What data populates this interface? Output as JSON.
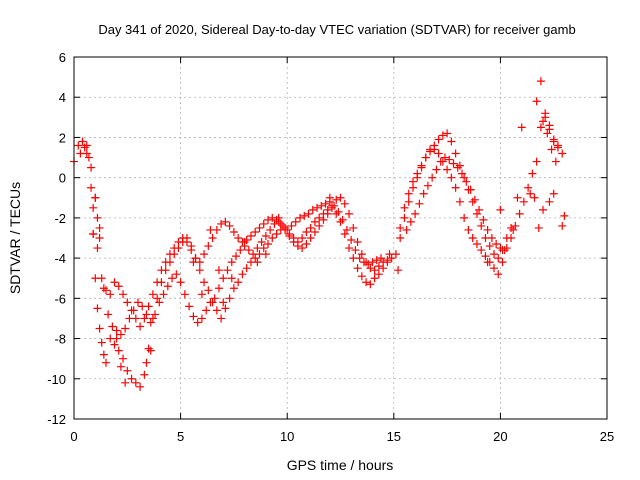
{
  "chart_data": {
    "type": "scatter",
    "title": "Day 341 of 2020, Sidereal Day-to-day VTEC variation (SDTVAR) for receiver gamb",
    "xlabel": "GPS time / hours",
    "ylabel": "SDTVAR / TECUs",
    "xlim": [
      0,
      25
    ],
    "ylim": [
      -12,
      6
    ],
    "xticks": [
      "0",
      "5",
      "10",
      "15",
      "20",
      "25"
    ],
    "yticks": [
      "-12",
      "-10",
      "-8",
      "-6",
      "-4",
      "-2",
      "0",
      "2",
      "4",
      "6"
    ],
    "grid": true,
    "marker": "plus",
    "color": "#ff0000",
    "series": [
      {
        "x": [
          0.0,
          0.2,
          0.4,
          0.6,
          0.8,
          0.9,
          1.0,
          1.1,
          1.2,
          1.3,
          1.4,
          1.5,
          1.7,
          1.9,
          2.1,
          2.3,
          2.5,
          2.7,
          2.9,
          3.1,
          3.3,
          3.5,
          3.7,
          3.9,
          4.1,
          4.3,
          4.5,
          4.7,
          4.9,
          5.1,
          5.3,
          5.5,
          5.7,
          5.9,
          6.1,
          6.3,
          6.5,
          6.7,
          6.9,
          7.1,
          7.3,
          7.5,
          7.7,
          7.9,
          8.1,
          8.3,
          8.5,
          8.7,
          8.9,
          9.1,
          9.3,
          9.5,
          9.7,
          9.9,
          10.1,
          10.3,
          10.5,
          10.7,
          10.9,
          11.1,
          11.3,
          11.5,
          11.7,
          11.9,
          12.1,
          12.3,
          12.5,
          12.7,
          12.9,
          13.1,
          13.3,
          13.5,
          13.7,
          13.9,
          14.1,
          14.3,
          14.5,
          14.7,
          14.9,
          15.1,
          15.3,
          15.5,
          15.7,
          15.9,
          16.1,
          16.3,
          16.5,
          16.7,
          16.9,
          17.1,
          17.3,
          17.5,
          17.7,
          17.9,
          18.1,
          18.3,
          18.5,
          18.7,
          18.9,
          19.1,
          19.3,
          19.5,
          19.7,
          19.9,
          20.1,
          20.3,
          20.5,
          20.7,
          20.9,
          21.1,
          21.3,
          21.5,
          21.7,
          21.9,
          22.1,
          22.3,
          22.5,
          22.7,
          22.9
        ],
        "y": [
          0.8,
          1.6,
          1.8,
          1.2,
          -0.5,
          -2.8,
          -5.0,
          -6.5,
          -7.5,
          -8.2,
          -8.8,
          -9.2,
          -8.0,
          -8.3,
          -8.6,
          -9.0,
          -9.6,
          -10.0,
          -10.2,
          -10.4,
          -9.8,
          -8.5,
          -7.0,
          -6.0,
          -5.2,
          -4.6,
          -4.2,
          -3.8,
          -3.5,
          -3.2,
          -3.0,
          -3.4,
          -4.0,
          -4.6,
          -5.2,
          -5.6,
          -6.2,
          -6.6,
          -7.0,
          -6.5,
          -6.0,
          -5.5,
          -5.2,
          -4.8,
          -4.5,
          -4.2,
          -4.0,
          -3.8,
          -3.5,
          -3.3,
          -3.0,
          -2.8,
          -2.6,
          -2.5,
          -2.8,
          -3.0,
          -3.2,
          -3.0,
          -2.7,
          -2.5,
          -2.2,
          -2.0,
          -1.8,
          -1.6,
          -1.5,
          -1.8,
          -2.2,
          -2.8,
          -3.5,
          -4.0,
          -4.5,
          -4.9,
          -5.2,
          -5.3,
          -5.0,
          -4.8,
          -4.5,
          -4.2,
          -4.0,
          -3.8,
          -2.5,
          -1.5,
          -0.8,
          -0.2,
          0.2,
          0.6,
          1.0,
          1.3,
          1.4,
          1.2,
          0.8,
          0.4,
          0.0,
          -0.5,
          -1.2,
          -2.0,
          -2.6,
          -3.0,
          -3.3,
          -3.6,
          -3.9,
          -4.2,
          -4.5,
          -4.8,
          -4.2,
          -3.5,
          -3.0,
          -2.4,
          -1.8,
          -1.2,
          -0.5,
          0.2,
          0.8,
          2.5,
          3.0,
          2.6,
          1.8,
          1.5,
          1.2
        ]
      },
      {
        "x": [
          0.3,
          0.5,
          0.7,
          0.9,
          1.1,
          1.3,
          1.5,
          1.7,
          1.9,
          2.1,
          2.3,
          2.5,
          2.7,
          2.9,
          3.1,
          3.3,
          3.5,
          3.7,
          3.9,
          4.1,
          4.3,
          4.5,
          4.7,
          4.9,
          5.1,
          5.3,
          5.5,
          5.7,
          5.9,
          6.1,
          6.3,
          6.5,
          6.7,
          6.9,
          7.1,
          7.3,
          7.5,
          7.7,
          7.9,
          8.1,
          8.3,
          8.5,
          8.7,
          8.9,
          9.1,
          9.3,
          9.5,
          9.7,
          9.9,
          10.1,
          10.3,
          10.5,
          10.7,
          10.9,
          11.1,
          11.3,
          11.5,
          11.7,
          11.9,
          12.1,
          12.3,
          12.5,
          12.7,
          12.9,
          13.1,
          13.3,
          13.5,
          13.7,
          13.9,
          14.1,
          14.3,
          14.5,
          14.7,
          15.3,
          15.5,
          15.7,
          15.9,
          16.1,
          16.3,
          16.5,
          16.7,
          16.9,
          17.1,
          17.3,
          17.5,
          17.7,
          17.9,
          18.1,
          18.3,
          18.5,
          18.7,
          18.9,
          19.1,
          19.3,
          19.5,
          19.7,
          19.9,
          20.1,
          20.3,
          20.5,
          21.7,
          21.9,
          22.1,
          22.3,
          22.5,
          22.7
        ],
        "y": [
          1.2,
          1.5,
          1.0,
          -1.5,
          -3.5,
          -5.0,
          -5.6,
          -5.8,
          -5.2,
          -5.4,
          -5.8,
          -6.2,
          -6.6,
          -7.0,
          -7.4,
          -7.0,
          -6.4,
          -5.8,
          -5.2,
          -4.6,
          -4.2,
          -3.8,
          -3.5,
          -3.2,
          -3.0,
          -3.2,
          -3.6,
          -4.0,
          -4.2,
          -3.8,
          -3.4,
          -3.0,
          -2.6,
          -2.3,
          -2.2,
          -2.4,
          -2.7,
          -3.0,
          -3.2,
          -3.1,
          -2.9,
          -2.7,
          -2.5,
          -2.3,
          -2.1,
          -2.0,
          -2.1,
          -2.3,
          -2.6,
          -2.9,
          -3.2,
          -3.4,
          -3.5,
          -3.3,
          -3.0,
          -2.7,
          -2.4,
          -2.1,
          -1.8,
          -1.4,
          -1.1,
          -1.0,
          -1.3,
          -1.8,
          -2.5,
          -3.2,
          -3.8,
          -4.2,
          -4.5,
          -4.6,
          -4.4,
          -4.2,
          -4.1,
          -3.0,
          -2.0,
          -1.2,
          -0.5,
          0.0,
          0.5,
          1.0,
          1.4,
          1.6,
          1.9,
          2.1,
          2.2,
          1.8,
          1.2,
          0.6,
          0.0,
          -0.6,
          -1.2,
          -1.8,
          -2.4,
          -3.0,
          -3.4,
          -3.8,
          -4.0,
          -3.6,
          -3.0,
          -2.5,
          3.8,
          4.8,
          3.2,
          2.4,
          1.9,
          1.6
        ]
      },
      {
        "x": [
          0.6,
          0.8,
          1.0,
          1.2,
          1.4,
          1.6,
          1.8,
          2.0,
          2.2,
          2.4,
          2.6,
          2.8,
          3.0,
          3.2,
          3.4,
          3.6,
          3.8,
          4.0,
          4.2,
          4.4,
          4.6,
          4.8,
          5.0,
          5.2,
          5.4,
          5.6,
          5.8,
          6.0,
          6.2,
          6.4,
          6.6,
          6.8,
          7.0,
          7.2,
          7.4,
          7.6,
          7.8,
          8.0,
          8.2,
          8.4,
          8.6,
          8.8,
          9.0,
          9.2,
          9.4,
          9.6,
          9.8,
          10.0,
          10.2,
          10.4,
          10.6,
          10.8,
          11.0,
          11.2,
          11.4,
          11.6,
          11.8,
          12.0,
          12.2,
          12.4,
          12.6,
          12.8,
          13.0,
          13.2,
          13.4,
          13.6,
          13.8,
          14.0,
          14.2,
          14.4,
          15.6,
          15.8,
          16.0,
          16.2,
          16.4,
          16.6,
          16.8,
          17.0,
          17.2,
          17.4,
          17.6,
          17.8,
          18.0,
          18.2,
          18.4,
          18.6,
          18.8,
          19.0,
          19.2,
          19.4,
          19.6,
          19.8,
          20.0,
          20.2,
          22.0,
          22.2,
          22.4,
          22.6
        ],
        "y": [
          1.6,
          0.5,
          -1.0,
          -3.0,
          -5.5,
          -6.8,
          -7.4,
          -7.6,
          -7.8,
          -7.5,
          -7.0,
          -6.6,
          -6.2,
          -6.4,
          -6.8,
          -7.2,
          -6.8,
          -6.2,
          -5.8,
          -5.4,
          -5.0,
          -4.8,
          -5.2,
          -5.8,
          -6.4,
          -6.9,
          -7.2,
          -7.0,
          -6.6,
          -6.2,
          -6.0,
          -5.5,
          -5.0,
          -4.6,
          -4.2,
          -3.9,
          -3.6,
          -3.4,
          -3.6,
          -3.8,
          -3.5,
          -3.2,
          -2.9,
          -2.6,
          -2.3,
          -2.2,
          -2.4,
          -2.6,
          -2.4,
          -2.2,
          -2.0,
          -1.9,
          -1.8,
          -1.6,
          -1.5,
          -1.4,
          -1.3,
          -1.2,
          -1.4,
          -1.7,
          -2.1,
          -2.6,
          -3.1,
          -3.6,
          -4.0,
          -4.2,
          -4.3,
          -4.2,
          -4.1,
          -4.0,
          -2.6,
          -2.2,
          -1.8,
          -1.3,
          -0.8,
          -0.4,
          0.0,
          0.4,
          0.8,
          1.0,
          0.9,
          0.7,
          0.5,
          0.2,
          -0.2,
          -0.6,
          -1.1,
          -1.6,
          -2.1,
          -2.6,
          -3.0,
          -3.3,
          -3.5,
          -3.6,
          2.8,
          2.2,
          1.4,
          0.8
        ]
      },
      {
        "x": [
          0.9,
          1.0,
          1.1,
          1.2,
          2.0,
          2.2,
          2.4,
          3.4,
          3.6,
          5.6,
          6.0,
          6.4,
          6.8,
          7.0,
          7.4,
          8.0,
          8.6,
          9.0,
          9.6,
          12.0,
          14.8,
          15.2,
          18.6,
          19.4,
          20.0,
          20.6,
          20.8,
          21.0,
          21.4,
          21.6,
          21.8,
          22.0,
          22.3,
          22.5,
          22.9,
          23.0
        ],
        "y": [
          -2.8,
          -1.0,
          -2.0,
          -2.5,
          -8.0,
          -9.4,
          -10.2,
          -9.2,
          -8.6,
          -4.2,
          -5.8,
          -2.6,
          -4.6,
          -6.2,
          -5.0,
          -3.2,
          -4.2,
          -3.8,
          -2.0,
          -1.0,
          -3.8,
          -4.6,
          -0.6,
          -4.2,
          -1.6,
          -2.6,
          -1.0,
          2.5,
          -0.8,
          -1.0,
          -2.5,
          -1.6,
          -1.2,
          -0.8,
          -2.4,
          -1.9
        ]
      }
    ]
  }
}
